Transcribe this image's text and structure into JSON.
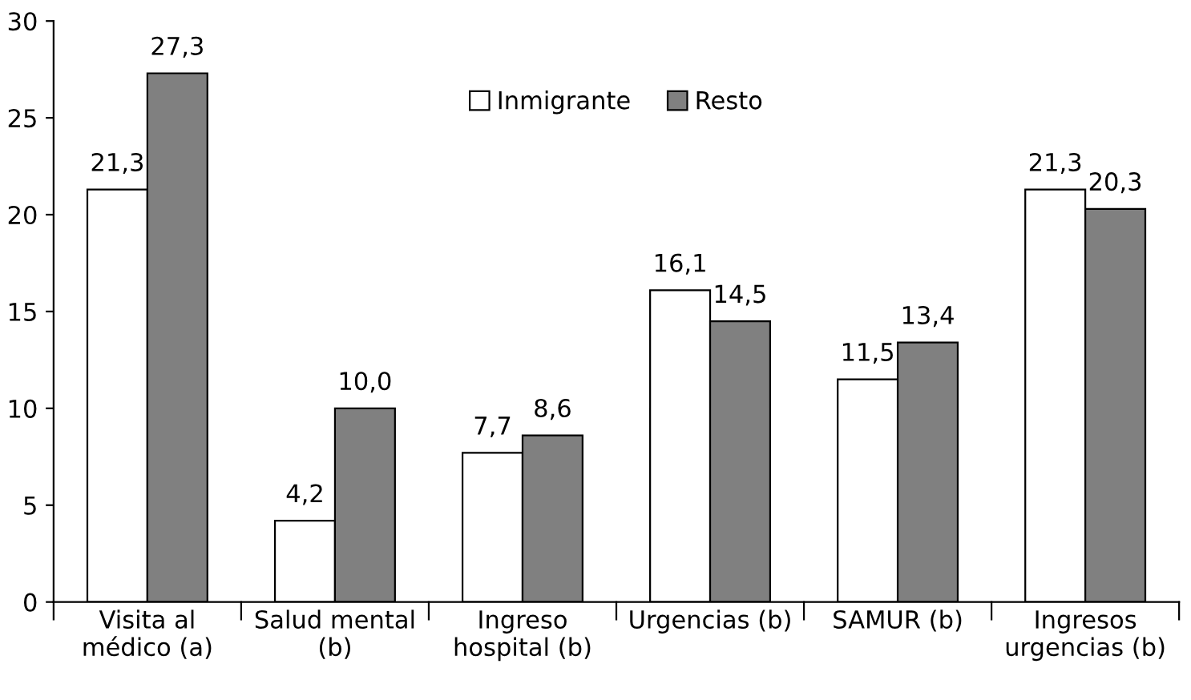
{
  "chart_data": {
    "type": "bar",
    "categories": [
      "Visita al\nmédico (a)",
      "Salud mental\n(b)",
      "Ingreso\nhospital (b)",
      "Urgencias (b)",
      "SAMUR (b)",
      "Ingresos\nurgencias (b)"
    ],
    "series": [
      {
        "name": "Inmigrante",
        "color": "#ffffff",
        "values": [
          21.3,
          4.2,
          7.7,
          16.1,
          11.5,
          21.3
        ],
        "value_labels": [
          "21,3",
          "4,2",
          "7,7",
          "16,1",
          "11,5",
          "21,3"
        ]
      },
      {
        "name": "Resto",
        "color": "#808080",
        "values": [
          27.3,
          10.0,
          8.6,
          14.5,
          13.4,
          20.3
        ],
        "value_labels": [
          "27,3",
          "10,0",
          "8,6",
          "14,5",
          "13,4",
          "20,3"
        ]
      }
    ],
    "ylim": [
      0,
      30
    ],
    "yticks": [
      0,
      5,
      10,
      15,
      20,
      25,
      30
    ],
    "grid": false,
    "legend": "top"
  }
}
